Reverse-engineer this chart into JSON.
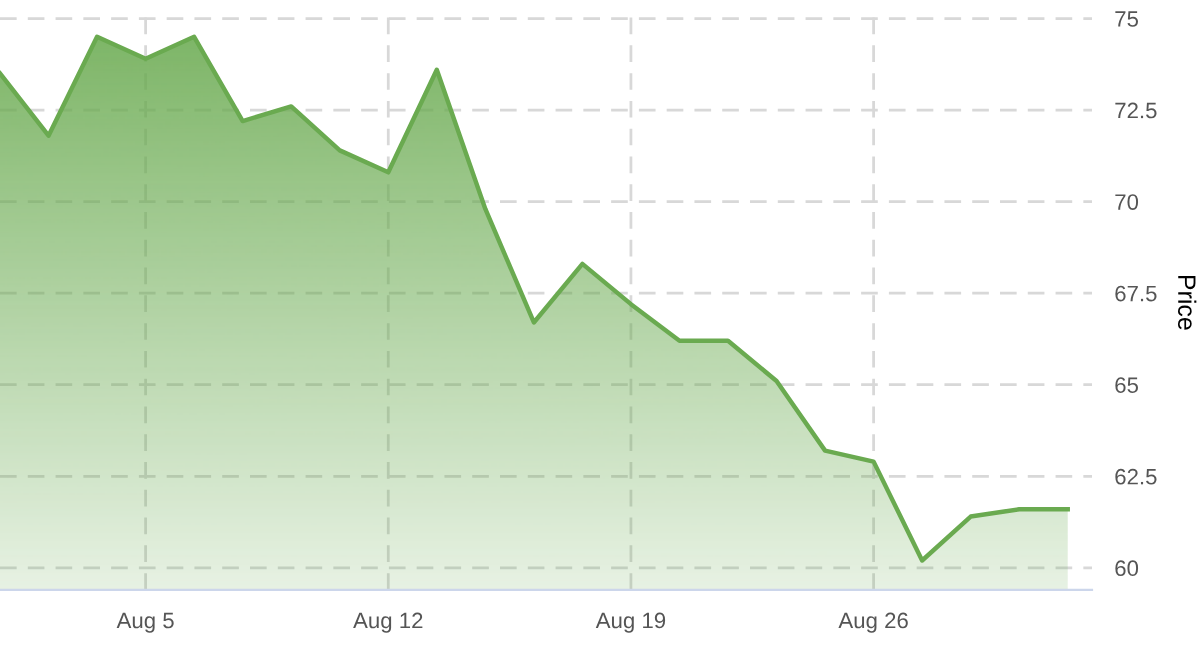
{
  "chart_data": {
    "type": "area",
    "ylabel": "Price",
    "categories": [
      null,
      null,
      null,
      "Aug 5",
      null,
      null,
      null,
      null,
      "Aug 12",
      null,
      null,
      null,
      null,
      "Aug 19",
      null,
      null,
      null,
      null,
      "Aug 26",
      null,
      null,
      null,
      null
    ],
    "series": [
      {
        "color": "#6aaa50",
        "values": [
          73.5,
          71.8,
          74.5,
          73.9,
          74.5,
          72.2,
          72.6,
          71.4,
          70.8,
          73.6,
          69.8,
          66.7,
          68.3,
          67.2,
          66.2,
          66.2,
          65.1,
          63.2,
          62.9,
          60.2,
          61.4,
          61.6,
          61.6
        ]
      }
    ],
    "ylim": [
      59.4,
      75.1
    ],
    "yticks": [
      60,
      62.5,
      65,
      67.5,
      70,
      72.5,
      75
    ],
    "grid": true,
    "legend": false
  }
}
